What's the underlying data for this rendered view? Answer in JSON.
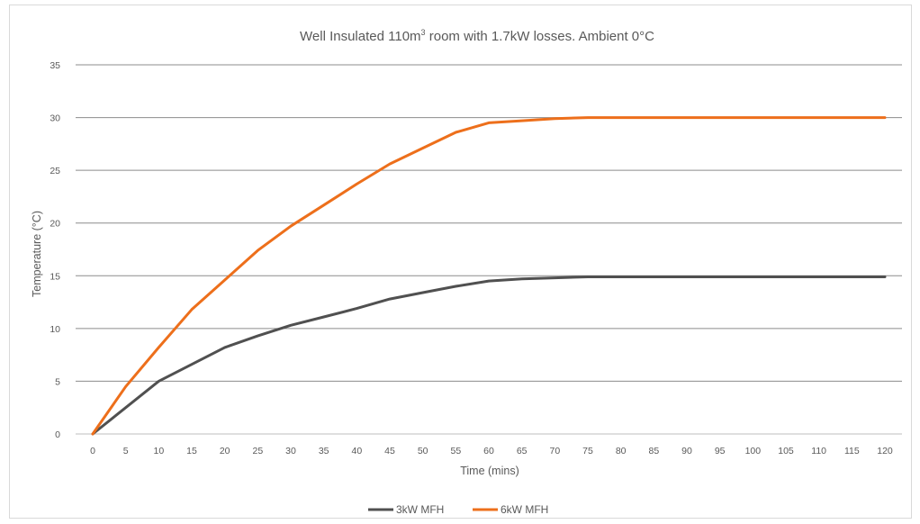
{
  "chart_data": {
    "type": "line",
    "title_main": "Well Insulated 110m",
    "title_sup": "3",
    "title_rest": " room with 1.7kW losses. Ambient 0°C",
    "xlabel": "Time (mins)",
    "ylabel": "Temperature (°C)",
    "ylim": [
      0,
      35
    ],
    "yticks": [
      "0",
      "5",
      "10",
      "15",
      "20",
      "25",
      "30",
      "35"
    ],
    "categories": [
      "0",
      "5",
      "10",
      "15",
      "20",
      "25",
      "30",
      "35",
      "40",
      "45",
      "50",
      "55",
      "60",
      "65",
      "70",
      "75",
      "80",
      "85",
      "90",
      "95",
      "100",
      "105",
      "110",
      "115",
      "120"
    ],
    "grid": true,
    "legend_position": "bottom",
    "series": [
      {
        "name": "3kW MFH",
        "color": "#505050",
        "values": [
          0,
          2.5,
          5,
          6.6,
          8.2,
          9.3,
          10.3,
          11.1,
          11.9,
          12.8,
          13.4,
          14.0,
          14.5,
          14.7,
          14.8,
          14.9,
          14.9,
          14.9,
          14.9,
          14.9,
          14.9,
          14.9,
          14.9,
          14.9,
          14.9
        ]
      },
      {
        "name": "6kW MFH",
        "color": "#ED6F1B",
        "values": [
          0,
          4.5,
          8.2,
          11.8,
          14.6,
          17.4,
          19.7,
          21.7,
          23.7,
          25.6,
          27.1,
          28.6,
          29.5,
          29.7,
          29.9,
          30,
          30,
          30,
          30,
          30,
          30,
          30,
          30,
          30,
          30
        ]
      }
    ]
  }
}
